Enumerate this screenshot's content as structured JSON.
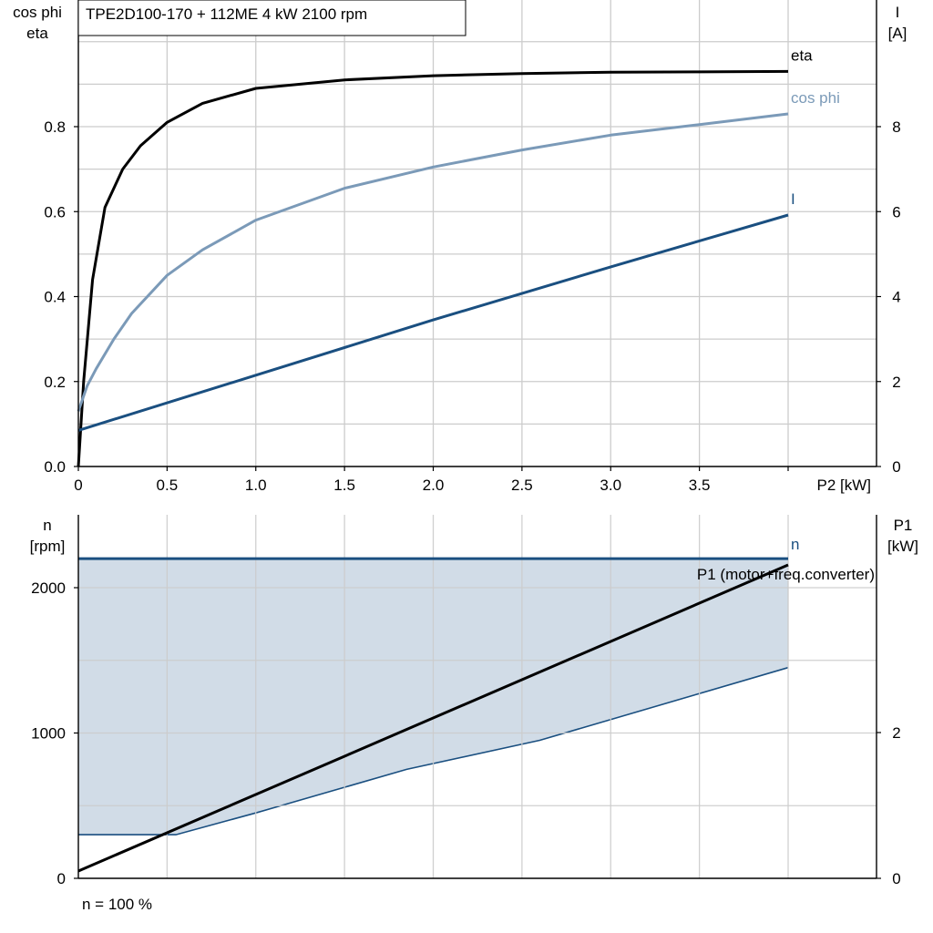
{
  "chart_data": [
    {
      "type": "line",
      "title": "TPE2D100-170 + 112ME   4 kW   2100 rpm",
      "ylabel_left": [
        "cos phi",
        "eta"
      ],
      "ylabel_right": [
        "I",
        "[A]"
      ],
      "xlabel": "P2 [kW]",
      "xlim": [
        0,
        4.5
      ],
      "ylim_left": [
        0,
        1.0
      ],
      "ylim_right": [
        0,
        10
      ],
      "x_ticks": [
        0,
        0.5,
        1.0,
        1.5,
        2.0,
        2.5,
        3.0,
        3.5
      ],
      "x_tick_labels": [
        "0",
        "0.5",
        "1.0",
        "1.5",
        "2.0",
        "2.5",
        "3.0",
        "3.5"
      ],
      "y_left_ticks": [
        0,
        0.2,
        0.4,
        0.6,
        0.8
      ],
      "y_left_tick_labels": [
        "0.0",
        "0.2",
        "0.4",
        "0.6",
        "0.8"
      ],
      "y_right_ticks": [
        0,
        2,
        4,
        6,
        8
      ],
      "y_right_tick_labels": [
        "0",
        "2",
        "4",
        "6",
        "8"
      ],
      "grid": true,
      "series": [
        {
          "name": "eta",
          "axis": "left",
          "color": "#000000",
          "x": [
            0,
            0.03,
            0.08,
            0.15,
            0.25,
            0.35,
            0.5,
            0.7,
            1.0,
            1.5,
            2.0,
            2.5,
            3.0,
            3.5,
            4.0
          ],
          "y": [
            0.0,
            0.2,
            0.44,
            0.61,
            0.7,
            0.755,
            0.81,
            0.855,
            0.89,
            0.91,
            0.92,
            0.925,
            0.928,
            0.929,
            0.93
          ]
        },
        {
          "name": "cos phi",
          "axis": "left",
          "color": "#7b9ab8",
          "x": [
            0,
            0.05,
            0.1,
            0.2,
            0.3,
            0.5,
            0.7,
            1.0,
            1.5,
            2.0,
            2.5,
            3.0,
            3.5,
            4.0
          ],
          "y": [
            0.13,
            0.19,
            0.23,
            0.3,
            0.36,
            0.45,
            0.51,
            0.58,
            0.655,
            0.705,
            0.745,
            0.78,
            0.805,
            0.83
          ]
        },
        {
          "name": "I",
          "axis": "right",
          "color": "#1a4f80",
          "x": [
            0,
            1.0,
            2.0,
            3.0,
            4.0
          ],
          "y": [
            0.85,
            2.15,
            3.45,
            4.7,
            5.92
          ]
        }
      ]
    },
    {
      "type": "line",
      "ylabel_left": [
        "n",
        "[rpm]"
      ],
      "ylabel_right": [
        "P1",
        "[kW]"
      ],
      "xlim": [
        0,
        4.5
      ],
      "ylim_left": [
        0,
        2500
      ],
      "ylim_right": [
        0,
        5
      ],
      "y_left_ticks": [
        0,
        1000,
        2000
      ],
      "y_left_tick_labels": [
        "0",
        "1000",
        "2000"
      ],
      "y_right_ticks": [
        0,
        2
      ],
      "y_right_tick_labels": [
        "0",
        "2"
      ],
      "grid": true,
      "footnote": "n = 100 %",
      "operating_range": {
        "color": "#d1dce7",
        "upper": {
          "x": [
            0,
            4.0
          ],
          "y": [
            2200,
            2200
          ]
        },
        "lower": {
          "x": [
            0,
            0.55,
            1.0,
            1.85,
            2.6,
            4.0
          ],
          "y": [
            300,
            300,
            450,
            750,
            950,
            1450
          ]
        }
      },
      "series": [
        {
          "name": "n",
          "axis": "left",
          "color": "#1a4f80",
          "x": [
            0,
            4.0
          ],
          "y": [
            2200,
            2200
          ]
        },
        {
          "name": "P1 (motor+freq.converter)",
          "axis": "right",
          "color": "#000000",
          "x": [
            0,
            4.0
          ],
          "y": [
            0.1,
            4.3
          ]
        }
      ]
    }
  ]
}
